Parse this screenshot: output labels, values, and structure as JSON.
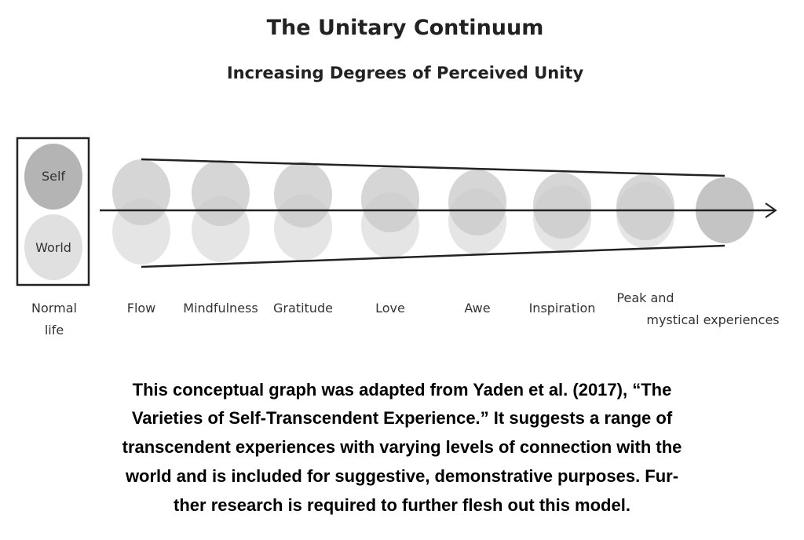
{
  "title": "The Unitary Continuum",
  "subtitle": "Increasing Degrees of Perceived Unity",
  "legend": {
    "self": "Self",
    "world": "World"
  },
  "stages": [
    [
      "Normal",
      "life"
    ],
    [
      "Flow"
    ],
    [
      "Mindfulness"
    ],
    [
      "Gratitude"
    ],
    [
      "Love"
    ],
    [
      "Awe"
    ],
    [
      "Inspiration"
    ],
    [
      "Peak and",
      "mystical experiences"
    ]
  ],
  "caption": [
    "This conceptual graph was adapted from Yaden et al. (2017), “The",
    "Varieties of Self-Transcendent Experience.” It suggests a range of",
    "transcendent experiences with varying levels of connection with the",
    "world and is included for suggestive, demonstrative purposes. Fur-",
    "ther research is required to further flesh out this model."
  ]
}
